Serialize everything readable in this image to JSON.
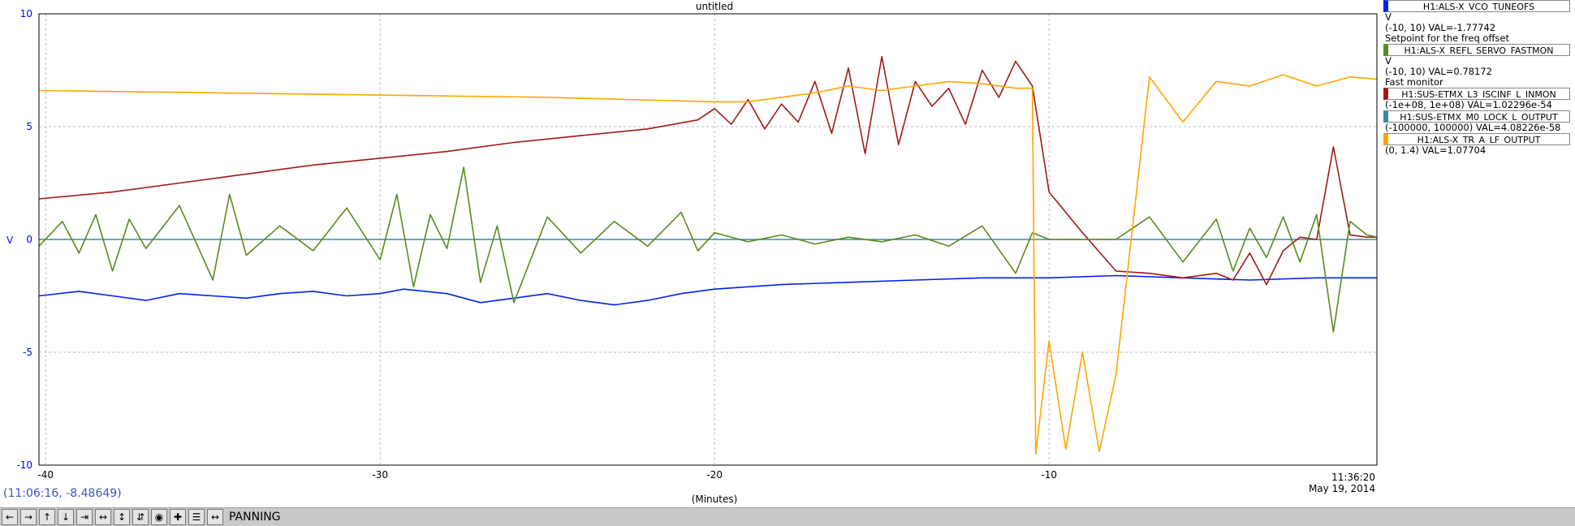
{
  "chart_data": {
    "type": "line",
    "title": "untitled",
    "xlabel": "(Minutes)",
    "ylabel": "V",
    "xlim": [
      -40.2,
      -0.2
    ],
    "ylim": [
      -10,
      10
    ],
    "x_ticks": [
      "-40",
      "-30",
      "-20",
      "-10"
    ],
    "y_ticks": [
      "10",
      "5",
      "0",
      "-5",
      "-10"
    ],
    "end_time": "11:36:20",
    "end_date": "May 19, 2014",
    "grid": true,
    "series": [
      {
        "name": "H1:ALS-X_VCO_TUNEOFS",
        "color": "#0022ee",
        "x": [
          -40.2,
          -39,
          -38,
          -37,
          -36,
          -35,
          -34,
          -33,
          -32,
          -31,
          -30,
          -29.3,
          -28,
          -27,
          -26,
          -25,
          -24,
          -23,
          -22,
          -21,
          -20,
          -18,
          -16,
          -14,
          -12,
          -10,
          -8,
          -6,
          -4,
          -2,
          -0.2
        ],
        "y": [
          -2.5,
          -2.3,
          -2.5,
          -2.7,
          -2.4,
          -2.5,
          -2.6,
          -2.4,
          -2.3,
          -2.5,
          -2.4,
          -2.2,
          -2.4,
          -2.8,
          -2.6,
          -2.4,
          -2.7,
          -2.9,
          -2.7,
          -2.4,
          -2.2,
          -2.0,
          -1.9,
          -1.8,
          -1.7,
          -1.7,
          -1.6,
          -1.7,
          -1.8,
          -1.7,
          -1.7
        ]
      },
      {
        "name": "H1:ALS-X_REFL_SERVO_FASTMON",
        "color": "#5a8a1e",
        "x": [
          -40.2,
          -39.5,
          -39,
          -38.5,
          -38,
          -37.5,
          -37,
          -36,
          -35,
          -34.5,
          -34,
          -33,
          -32,
          -31,
          -30,
          -29.5,
          -29,
          -28.5,
          -28,
          -27.5,
          -27,
          -26.5,
          -26,
          -25,
          -24,
          -23,
          -22,
          -21,
          -20.5,
          -20,
          -19,
          -18,
          -17,
          -16,
          -15,
          -14,
          -13,
          -12,
          -11,
          -10.5,
          -10,
          -9,
          -8,
          -7,
          -6,
          -5,
          -4.5,
          -4,
          -3.5,
          -3,
          -2.5,
          -2,
          -1.5,
          -1,
          -0.5,
          -0.2
        ],
        "y": [
          -0.3,
          0.8,
          -0.6,
          1.1,
          -1.4,
          0.9,
          -0.4,
          1.5,
          -1.8,
          2.0,
          -0.7,
          0.6,
          -0.5,
          1.4,
          -0.9,
          2.0,
          -2.1,
          1.1,
          -0.4,
          3.2,
          -1.9,
          0.6,
          -2.8,
          1.0,
          -0.6,
          0.8,
          -0.3,
          1.2,
          -0.5,
          0.3,
          -0.1,
          0.2,
          -0.2,
          0.1,
          -0.1,
          0.2,
          -0.3,
          0.6,
          -1.5,
          0.3,
          0.0,
          0.0,
          0.0,
          1.0,
          -1.0,
          0.9,
          -1.4,
          0.5,
          -0.8,
          1.0,
          -1.0,
          1.1,
          -4.1,
          0.8,
          0.2,
          0.1
        ]
      },
      {
        "name": "H1:SUS-ETMX_L3_ISCINF_L_INMON",
        "color": "#a01a1a",
        "x": [
          -40.2,
          -38,
          -36,
          -34,
          -32,
          -30,
          -28,
          -26,
          -24,
          -22,
          -20.5,
          -20,
          -19.5,
          -19,
          -18.5,
          -18,
          -17.5,
          -17,
          -16.5,
          -16,
          -15.5,
          -15,
          -14.5,
          -14,
          -13.5,
          -13,
          -12.5,
          -12,
          -11.5,
          -11,
          -10.5,
          -10,
          -9,
          -8,
          -7,
          -6,
          -5,
          -4.5,
          -4,
          -3.5,
          -3,
          -2.5,
          -2,
          -1.5,
          -1,
          -0.5,
          -0.2
        ],
        "y": [
          1.8,
          2.1,
          2.5,
          2.9,
          3.3,
          3.6,
          3.9,
          4.3,
          4.6,
          4.9,
          5.3,
          5.8,
          5.1,
          6.2,
          4.9,
          6.0,
          5.2,
          7.0,
          4.7,
          7.6,
          3.8,
          8.1,
          4.2,
          7.0,
          5.9,
          6.7,
          5.1,
          7.5,
          6.3,
          7.9,
          6.8,
          2.1,
          0.3,
          -1.4,
          -1.5,
          -1.7,
          -1.5,
          -1.8,
          -0.6,
          -2.0,
          -0.5,
          0.1,
          0.0,
          4.1,
          0.2,
          0.1,
          0.1
        ]
      },
      {
        "name": "H1:SUS-ETMX_M0_LOCK_L_OUTPUT",
        "color": "#3a8aa0",
        "x": [
          -40.2,
          -0.2
        ],
        "y": [
          0.0,
          0.0
        ]
      },
      {
        "name": "H1:ALS-X_TR_A_LF_OUTPUT",
        "color": "#ffa500",
        "x": [
          -40.2,
          -35,
          -30,
          -25,
          -20,
          -19,
          -18,
          -17,
          -16,
          -15,
          -14,
          -13,
          -12,
          -11,
          -10.5,
          -10.4,
          -10,
          -9.5,
          -9,
          -8.5,
          -8,
          -7,
          -6,
          -5,
          -4,
          -3,
          -2,
          -1,
          -0.2
        ],
        "y": [
          6.6,
          6.5,
          6.4,
          6.3,
          6.1,
          6.1,
          6.3,
          6.5,
          6.8,
          6.6,
          6.8,
          7.0,
          6.9,
          6.7,
          6.7,
          -9.5,
          -4.5,
          -9.3,
          -5.0,
          -9.4,
          -6.0,
          7.2,
          5.2,
          7.0,
          6.8,
          7.3,
          6.8,
          7.2,
          7.1
        ]
      }
    ]
  },
  "legend": [
    {
      "name": "H1:ALS-X_VCO_TUNEOFS",
      "color": "#0022ee",
      "unit": "V",
      "range_val": "(-10, 10)  VAL=-1.77742",
      "description": "Setpoint for the freq offset"
    },
    {
      "name": "H1:ALS-X_REFL_SERVO_FASTMON",
      "color": "#5a8a1e",
      "unit": "V",
      "range_val": "(-10, 10) VAL=0.78172",
      "description": "Fast monitor"
    },
    {
      "name": "H1:SUS-ETMX_L3_ISCINF_L_INMON",
      "color": "#a01a1a",
      "unit": "",
      "range_val": "(-1e+08, 1e+08) VAL=1.02296e-54",
      "description": ""
    },
    {
      "name": "H1:SUS-ETMX_M0_LOCK_L_OUTPUT",
      "color": "#3a8aa0",
      "unit": "",
      "range_val": "(-100000, 100000) VAL=4.08226e-58",
      "description": ""
    },
    {
      "name": "H1:ALS-X_TR_A_LF_OUTPUT",
      "color": "#ffa500",
      "unit": "",
      "range_val": "(0, 1.4) VAL=1.07704",
      "description": ""
    }
  ],
  "cursor_readout": "(11:06:16, -8.48649)",
  "toolbar": {
    "mode_label": "PANNING",
    "buttons": [
      "←",
      "→",
      "↑",
      "↓",
      "⇥",
      "↔",
      "↕",
      "⇵",
      "◉",
      "✚",
      "☰",
      "↔"
    ]
  }
}
